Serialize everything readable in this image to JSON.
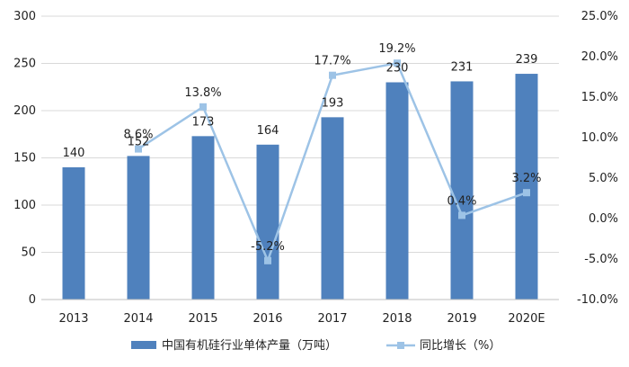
{
  "chart_data": {
    "type": "bar",
    "categories": [
      "2013",
      "2014",
      "2015",
      "2016",
      "2017",
      "2018",
      "2019",
      "2020E"
    ],
    "series": [
      {
        "name": "中国有机硅行业单体产量（万吨）",
        "type": "bar",
        "axis": "left",
        "values": [
          140,
          152,
          173,
          164,
          193,
          230,
          231,
          239
        ],
        "labels": [
          "140",
          "152",
          "173",
          "164",
          "193",
          "230",
          "231",
          "239"
        ],
        "color": "#4f81bd"
      },
      {
        "name": "同比增长（%）",
        "type": "line",
        "axis": "right",
        "values": [
          null,
          8.6,
          13.8,
          -5.2,
          17.7,
          19.2,
          0.4,
          3.2
        ],
        "labels": [
          "",
          "8.6%",
          "13.8%",
          "-5.2%",
          "17.7%",
          "19.2%",
          "0.4%",
          "3.2%"
        ],
        "color": "#9dc3e6"
      }
    ],
    "y_left": {
      "lim": [
        0,
        300
      ],
      "ticks": [
        0,
        50,
        100,
        150,
        200,
        250,
        300
      ],
      "tick_labels": [
        "0",
        "50",
        "100",
        "150",
        "200",
        "250",
        "300"
      ]
    },
    "y_right": {
      "lim": [
        -10,
        25
      ],
      "ticks": [
        -10,
        -5,
        0,
        5,
        10,
        15,
        20,
        25
      ],
      "tick_labels": [
        "-10.0%",
        "-5.0%",
        "0.0%",
        "5.0%",
        "10.0%",
        "15.0%",
        "20.0%",
        "25.0%"
      ]
    },
    "grid": true,
    "legend": "bottom"
  }
}
